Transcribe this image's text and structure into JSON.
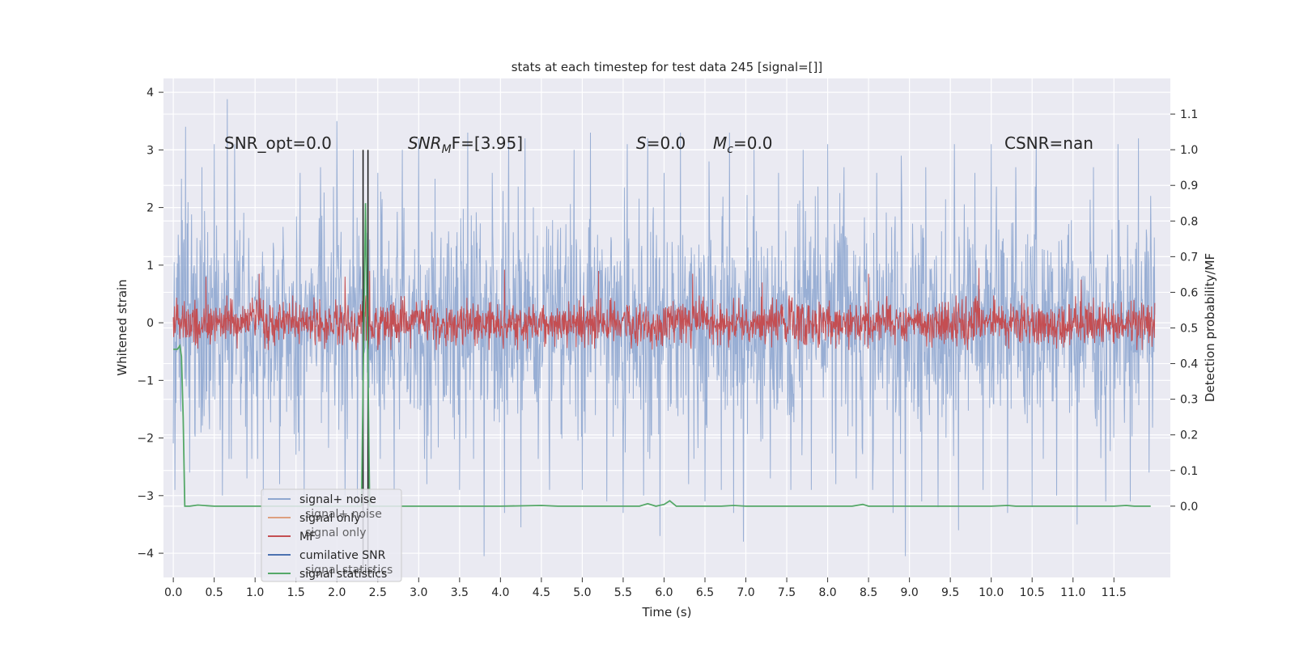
{
  "chart_data": {
    "type": "line",
    "title": "stats at each timestep for test data 245 [signal=[]]",
    "xlabel": "Time (s)",
    "ylabel_left": "Whitened strain",
    "ylabel_right": "Detection probability/MF",
    "xlim": [
      -0.12,
      12.19
    ],
    "ylim_left": [
      -4.42,
      4.24
    ],
    "ylim_right": [
      -0.2,
      1.2
    ],
    "x_ticks": [
      "0.0",
      "0.5",
      "1.0",
      "1.5",
      "2.0",
      "2.5",
      "3.0",
      "3.5",
      "4.0",
      "4.5",
      "5.0",
      "5.5",
      "6.0",
      "6.5",
      "7.0",
      "7.5",
      "8.0",
      "8.5",
      "9.0",
      "9.5",
      "10.0",
      "10.5",
      "11.0",
      "11.5"
    ],
    "y_ticks_left": [
      "4",
      "3",
      "2",
      "1",
      "0",
      "−1",
      "−2",
      "−3",
      "−4"
    ],
    "y_ticks_right": [
      "1.1",
      "1.0",
      "0.9",
      "0.8",
      "0.7",
      "0.6",
      "0.5",
      "0.4",
      "0.3",
      "0.2",
      "0.1",
      "0.0"
    ],
    "grid": true,
    "annotations": {
      "snr_opt": "SNR_opt=0.0",
      "snr_mf_prefix": "SNR",
      "snr_mf_sub": "M",
      "snr_mf_suffix": "F=[3.95]",
      "s_prefix": "S",
      "s_value": "=0.0",
      "mc_prefix": "M",
      "mc_sub": "c",
      "mc_value": "=0.0",
      "csnr": "CSNR=nan"
    },
    "legend": {
      "placement": "lower-left",
      "entries": [
        "signal+ noise",
        "signal only",
        "MF",
        "cumilative SNR",
        "signal statistics"
      ],
      "ghost_entries": [
        "signal+ noise",
        "signal only",
        "signal statistics"
      ]
    },
    "series": [
      {
        "name": "signal+ noise",
        "axis": "left",
        "color": "#8fa7d0",
        "x_range": [
          0.0,
          12.0
        ],
        "envelope_typical": 1.75,
        "spikes": [
          [
            0.02,
            3.25
          ],
          [
            0.1,
            2.5
          ],
          [
            0.15,
            3.4
          ],
          [
            0.35,
            2.7
          ],
          [
            0.5,
            3.1
          ],
          [
            0.66,
            3.88
          ],
          [
            0.75,
            3.1
          ],
          [
            0.9,
            2.6
          ],
          [
            1.1,
            2.8
          ],
          [
            1.3,
            2.3
          ],
          [
            1.55,
            2.6
          ],
          [
            1.8,
            2.7
          ],
          [
            2.0,
            3.5
          ],
          [
            2.1,
            2.5
          ],
          [
            2.2,
            3.0
          ],
          [
            2.5,
            2.6
          ],
          [
            2.8,
            3.0
          ],
          [
            3.0,
            3.2
          ],
          [
            3.2,
            2.5
          ],
          [
            3.6,
            3.3
          ],
          [
            3.9,
            2.6
          ],
          [
            4.1,
            3.2
          ],
          [
            4.3,
            3.2
          ],
          [
            4.6,
            3.0
          ],
          [
            4.9,
            3.0
          ],
          [
            5.1,
            3.3
          ],
          [
            5.3,
            2.5
          ],
          [
            5.55,
            3.1
          ],
          [
            5.8,
            3.2
          ],
          [
            6.0,
            2.6
          ],
          [
            6.2,
            3.3
          ],
          [
            6.55,
            2.8
          ],
          [
            6.8,
            3.3
          ],
          [
            7.1,
            3.0
          ],
          [
            7.4,
            2.6
          ],
          [
            7.7,
            3.0
          ],
          [
            8.0,
            3.1
          ],
          [
            8.2,
            2.7
          ],
          [
            8.6,
            2.6
          ],
          [
            8.9,
            2.9
          ],
          [
            9.2,
            2.7
          ],
          [
            9.55,
            3.1
          ],
          [
            9.8,
            2.6
          ],
          [
            10.0,
            3.1
          ],
          [
            10.3,
            2.7
          ],
          [
            10.55,
            3.2
          ],
          [
            10.8,
            3.0
          ],
          [
            11.05,
            3.2
          ],
          [
            11.25,
            2.7
          ],
          [
            11.55,
            3.1
          ],
          [
            11.8,
            3.2
          ],
          [
            11.95,
            2.2
          ],
          [
            0.02,
            -2.9
          ],
          [
            0.2,
            -2.6
          ],
          [
            0.6,
            -3.0
          ],
          [
            0.9,
            -2.7
          ],
          [
            1.1,
            -3.0
          ],
          [
            1.3,
            -2.8
          ],
          [
            1.6,
            -3.0
          ],
          [
            2.1,
            -3.0
          ],
          [
            2.25,
            -3.2
          ],
          [
            2.7,
            -2.9
          ],
          [
            3.1,
            -2.8
          ],
          [
            3.5,
            -2.9
          ],
          [
            3.8,
            -4.05
          ],
          [
            4.05,
            -3.3
          ],
          [
            4.25,
            -3.55
          ],
          [
            4.6,
            -2.9
          ],
          [
            5.0,
            -2.9
          ],
          [
            5.3,
            -3.1
          ],
          [
            5.5,
            -3.3
          ],
          [
            5.75,
            -3.0
          ],
          [
            5.95,
            -3.7
          ],
          [
            6.3,
            -2.8
          ],
          [
            6.5,
            -3.1
          ],
          [
            6.7,
            -2.9
          ],
          [
            6.85,
            -3.3
          ],
          [
            6.97,
            -3.8
          ],
          [
            7.3,
            -2.7
          ],
          [
            7.55,
            -2.9
          ],
          [
            7.8,
            -2.9
          ],
          [
            8.1,
            -2.8
          ],
          [
            8.35,
            -2.7
          ],
          [
            8.55,
            -2.9
          ],
          [
            8.8,
            -3.3
          ],
          [
            8.95,
            -4.05
          ],
          [
            9.15,
            -3.1
          ],
          [
            9.35,
            -3.2
          ],
          [
            9.6,
            -3.6
          ],
          [
            9.9,
            -2.9
          ],
          [
            10.2,
            -3.3
          ],
          [
            10.5,
            -3.2
          ],
          [
            10.8,
            -3.0
          ],
          [
            11.05,
            -3.5
          ],
          [
            11.4,
            -3.1
          ],
          [
            11.7,
            -3.1
          ],
          [
            11.93,
            -2.6
          ]
        ]
      },
      {
        "name": "MF",
        "axis": "left",
        "color": "#c44e52",
        "x_range": [
          0.0,
          12.0
        ],
        "envelope_typical": 0.35,
        "spikes": [
          [
            0.4,
            0.8
          ],
          [
            1.05,
            0.85
          ],
          [
            2.1,
            0.8
          ],
          [
            2.4,
            0.9
          ],
          [
            4.05,
            0.92
          ],
          [
            5.2,
            0.9
          ],
          [
            6.35,
            0.85
          ],
          [
            7.2,
            0.7
          ],
          [
            8.5,
            0.85
          ],
          [
            9.85,
            0.95
          ],
          [
            11.1,
            0.75
          ],
          [
            0.3,
            -0.45
          ],
          [
            2.9,
            -0.45
          ],
          [
            5.6,
            -0.45
          ],
          [
            8.1,
            -0.45
          ],
          [
            10.8,
            -0.45
          ]
        ]
      },
      {
        "name": "signal statistics",
        "axis": "right",
        "color": "#55a868",
        "x": [
          0.0,
          0.05,
          0.08,
          0.1,
          0.12,
          0.14,
          0.2,
          0.3,
          0.5,
          1.0,
          2.0,
          2.3,
          2.35,
          2.38,
          2.4,
          2.45,
          2.5,
          3.0,
          4.0,
          4.5,
          4.7,
          5.0,
          5.5,
          5.7,
          5.8,
          5.9,
          6.0,
          6.07,
          6.15,
          6.3,
          6.7,
          6.85,
          7.0,
          8.0,
          8.3,
          8.43,
          8.5,
          9.0,
          10.0,
          10.2,
          10.3,
          11.0,
          11.5,
          11.65,
          11.75,
          11.95
        ],
        "values": [
          0.44,
          0.44,
          0.45,
          0.42,
          0.25,
          0.0,
          0.0,
          0.003,
          0.0,
          0.0,
          0.0,
          0.0,
          0.85,
          0.4,
          0.0,
          0.0,
          0.0,
          0.0,
          0.0,
          0.002,
          0.0,
          0.0,
          0.0,
          0.0,
          0.007,
          0.0,
          0.005,
          0.015,
          0.0,
          0.0,
          0.0,
          0.002,
          0.0,
          0.0,
          0.0,
          0.005,
          0.0,
          0.0,
          0.0,
          0.002,
          0.0,
          0.0,
          0.0,
          0.002,
          0.0,
          0.0
        ]
      },
      {
        "name": "event markers",
        "axis": "left",
        "color": "#1a1a1a",
        "x": [
          2.32,
          2.38
        ],
        "y_range": [
          -4.42,
          3.0
        ]
      }
    ]
  },
  "colors": {
    "plot_bg": "#eaeaf2",
    "grid": "#ffffff",
    "figure_bg": "#ffffff",
    "legend_bg": "#eaeaf2",
    "legend_border": "#cccccc"
  }
}
